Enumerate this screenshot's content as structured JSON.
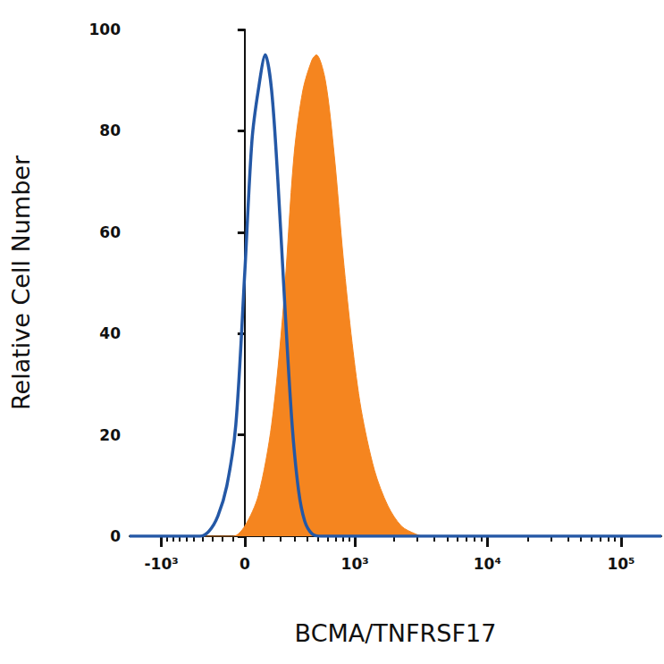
{
  "chart_data": {
    "type": "line",
    "xlabel": "BCMA/TNFRSF17",
    "ylabel": "Relative Cell Number",
    "xlim": [
      -1800,
      200000
    ],
    "xticks": [
      {
        "value": -1000,
        "label": "-10³"
      },
      0,
      {
        "value": 1000,
        "label": "10³"
      },
      {
        "value": 10000,
        "label": "10⁴"
      },
      {
        "value": 100000,
        "label": "10⁵"
      }
    ],
    "ylim": [
      0,
      100
    ],
    "yticks": [
      0,
      20,
      40,
      60,
      80,
      100
    ],
    "grid": false,
    "series": [
      {
        "type": "area",
        "color": "#f5851f",
        "x": [
          -1800,
          -102,
          0,
          72,
          147,
          219,
          292,
          361,
          440,
          482,
          576,
          685,
          808,
          952,
          1118,
          1416,
          1791,
          2266,
          2861,
          3340,
          200000
        ],
        "values": [
          0,
          0,
          2,
          8,
          22,
          45,
          75,
          88,
          94,
          95,
          90,
          75,
          55,
          38,
          25,
          13,
          6,
          2,
          0.5,
          0,
          0
        ]
      },
      {
        "type": "line",
        "color": "#2458a6",
        "x": [
          -1800,
          -428,
          -331,
          -242,
          -158,
          -78,
          0,
          38,
          72,
          111,
          147,
          185,
          230,
          279,
          327,
          376,
          440,
          527,
          200000
        ],
        "values": [
          0,
          0,
          1,
          4,
          10,
          22,
          52,
          78,
          88,
          95,
          88,
          70,
          45,
          22,
          9,
          3,
          0.5,
          0,
          0
        ]
      }
    ]
  }
}
